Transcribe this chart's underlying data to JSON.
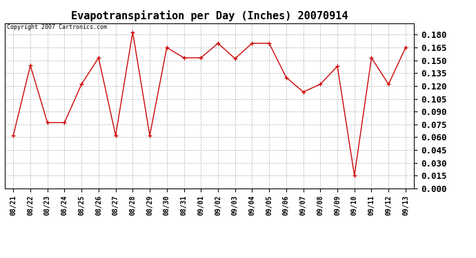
{
  "title": "Evapotranspiration per Day (Inches) 20070914",
  "copyright_text": "Copyright 2007 Cartronics.com",
  "x_labels": [
    "08/21",
    "08/22",
    "08/23",
    "08/24",
    "08/25",
    "08/26",
    "08/27",
    "08/28",
    "08/29",
    "08/30",
    "08/31",
    "09/01",
    "09/02",
    "09/03",
    "09/04",
    "09/05",
    "09/06",
    "09/07",
    "09/08",
    "09/09",
    "09/10",
    "09/11",
    "09/12",
    "09/13"
  ],
  "y_values": [
    0.062,
    0.144,
    0.077,
    0.077,
    0.122,
    0.153,
    0.062,
    0.183,
    0.062,
    0.165,
    0.153,
    0.153,
    0.17,
    0.152,
    0.17,
    0.17,
    0.13,
    0.113,
    0.122,
    0.143,
    0.015,
    0.153,
    0.122,
    0.165
  ],
  "line_color": "#cc0000",
  "marker": "+",
  "marker_size": 5,
  "marker_color": "#cc0000",
  "background_color": "#ffffff",
  "plot_bg_color": "#ffffff",
  "grid_color": "#aaaaaa",
  "title_fontsize": 11,
  "copyright_fontsize": 6,
  "tick_fontsize": 7,
  "ytick_fontsize": 9,
  "ylim": [
    0.0,
    0.1935
  ],
  "yticks": [
    0.0,
    0.015,
    0.03,
    0.045,
    0.06,
    0.075,
    0.09,
    0.105,
    0.12,
    0.135,
    0.15,
    0.165,
    0.18
  ]
}
